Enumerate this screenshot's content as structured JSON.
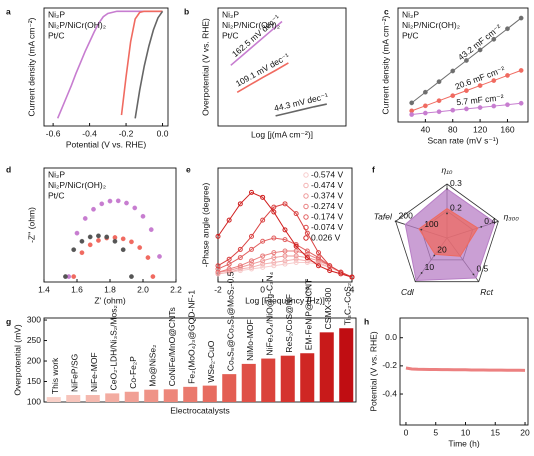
{
  "chart_data": [
    {
      "panel": "a",
      "type": "line",
      "xlabel": "Potential (V vs. RHE)",
      "ylabel": "Current density (mA cm⁻²)",
      "x": [
        -0.6,
        -0.575,
        -0.55,
        -0.525,
        -0.5,
        -0.475,
        -0.45,
        -0.425,
        -0.4,
        -0.375,
        -0.35,
        -0.325,
        -0.3,
        -0.275,
        -0.25,
        -0.225,
        -0.2,
        -0.175,
        -0.15,
        -0.125,
        -0.1,
        -0.075,
        -0.05,
        -0.025,
        0
      ],
      "xlim": [
        -0.65,
        0.03
      ],
      "ylim": [
        -105,
        3
      ],
      "xticks": [
        -0.6,
        -0.4,
        -0.2,
        {
          "value": 0,
          "label": "0.0"
        }
      ],
      "legend": "top-left",
      "series": [
        {
          "name": "Ni₂P",
          "color": "#c77dd0",
          "values": [
            null,
            -98,
            -88,
            -78,
            -68,
            -57,
            -47,
            -37,
            -28,
            -19,
            -11,
            -5,
            -2,
            -1,
            0,
            0,
            0,
            0,
            0,
            0,
            0,
            0,
            0,
            0,
            0
          ]
        },
        {
          "name": "Ni₂P/NiCr(OH)₂",
          "color": "#f06a60",
          "values": [
            null,
            null,
            null,
            null,
            null,
            null,
            null,
            null,
            null,
            null,
            null,
            null,
            null,
            null,
            null,
            -95,
            -60,
            -28,
            -7,
            -1,
            0,
            0,
            0,
            0,
            0
          ]
        },
        {
          "name": "Pt/C",
          "color": "#666666",
          "values": [
            null,
            null,
            null,
            null,
            null,
            null,
            null,
            null,
            null,
            null,
            null,
            null,
            null,
            null,
            null,
            null,
            null,
            null,
            -98,
            -72,
            -50,
            -32,
            -17,
            -6,
            0
          ]
        }
      ]
    },
    {
      "panel": "b",
      "type": "line",
      "xlabel": "Log [j(mA cm⁻²)]",
      "ylabel": "Overpotential (V vs. RHE)",
      "xlim": [
        0,
        2
      ],
      "ylim": [
        0.05,
        0.4
      ],
      "legend": "top-left",
      "annotations": [
        "162.5 mV dec⁻¹",
        "109.1 mV dec⁻¹",
        "44.3 mV dec⁻¹"
      ],
      "series": [
        {
          "name": "Ni₂P",
          "color": "#c77dd0",
          "x": [
            0.2,
            0.4,
            0.6,
            0.8,
            1.0
          ],
          "values": [
            0.23,
            0.2625,
            0.295,
            0.3275,
            0.36
          ]
        },
        {
          "name": "Ni₂P/NiCr(OH)₂",
          "color": "#f06a60",
          "x": [
            0.3,
            0.5,
            0.7,
            0.9,
            1.1
          ],
          "values": [
            0.15,
            0.172,
            0.194,
            0.215,
            0.237
          ]
        },
        {
          "name": "Pt/C",
          "color": "#666666",
          "x": [
            0.9,
            1.1,
            1.3,
            1.5,
            1.7
          ],
          "values": [
            0.08,
            0.089,
            0.098,
            0.107,
            0.115
          ]
        }
      ]
    },
    {
      "panel": "c",
      "type": "scatter",
      "fit": true,
      "xlabel": "Scan rate (mV s⁻¹)",
      "ylabel": "Current density (mA cm⁻²)",
      "x": [
        20,
        40,
        60,
        80,
        100,
        120,
        140,
        160,
        180
      ],
      "xlim": [
        0,
        190
      ],
      "ylim": [
        -0.5,
        8.8
      ],
      "xticks": [
        40,
        80,
        120,
        160
      ],
      "legend": "top-left",
      "annotations": [
        "43.2 mF cm⁻²",
        "20.6 mF cm⁻²",
        "5.7 mF cm⁻²"
      ],
      "series": [
        {
          "name": "Ni₂P",
          "color": "#6e6e6e",
          "values": [
            1.06,
            1.93,
            2.79,
            3.66,
            4.52,
            5.38,
            6.25,
            7.11,
            7.98
          ]
        },
        {
          "name": "Ni₂P/NiCr(OH)₂",
          "color": "#f06a60",
          "values": [
            0.41,
            0.82,
            1.24,
            1.65,
            2.06,
            2.47,
            2.88,
            3.3,
            3.71
          ]
        },
        {
          "name": "Pt/C",
          "color": "#c77dd0",
          "values": [
            0.11,
            0.23,
            0.34,
            0.46,
            0.57,
            0.68,
            0.8,
            0.91,
            1.03
          ]
        }
      ]
    },
    {
      "panel": "d",
      "type": "scatter",
      "xlabel": "Z' (ohm)",
      "ylabel": "-Z'' (ohm)",
      "xlim": [
        1.4,
        2.2
      ],
      "ylim": [
        -0.02,
        0.4
      ],
      "xticks": [
        1.4,
        1.6,
        1.8,
        {
          "value": 2,
          "label": "2.0"
        },
        2.2
      ],
      "legend": "top-left",
      "series": [
        {
          "name": "Ni₂P",
          "color": "#c77dd0",
          "x": [
            1.55,
            1.6,
            1.65,
            1.7,
            1.75,
            1.8,
            1.85,
            1.9,
            1.95,
            2.0,
            2.05,
            2.1
          ],
          "values": [
            0,
            0.16,
            0.214,
            0.248,
            0.268,
            0.278,
            0.279,
            0.271,
            0.253,
            0.222,
            0.173,
            0.074
          ]
        },
        {
          "name": "Ni₂P/NiCr(OH)₂",
          "color": "#f06a60",
          "x": [
            1.58,
            1.63,
            1.68,
            1.73,
            1.78,
            1.83,
            1.88,
            1.93,
            1.98,
            2.03,
            2.06
          ],
          "values": [
            0,
            0.088,
            0.117,
            0.133,
            0.142,
            0.144,
            0.139,
            0.128,
            0.107,
            0.07,
            0
          ]
        },
        {
          "name": "Pt/C",
          "color": "#555555",
          "x": [
            1.53,
            1.58,
            1.63,
            1.68,
            1.73,
            1.78,
            1.83,
            1.88,
            1.93
          ],
          "values": [
            0,
            0.099,
            0.13,
            0.146,
            0.15,
            0.146,
            0.13,
            0.099,
            0
          ]
        }
      ]
    },
    {
      "panel": "e",
      "type": "scatter",
      "marker": "open",
      "connect": true,
      "xlabel": "Log [Frequency (Hz)]",
      "ylabel": "-Phase angle (degree)",
      "x": [
        -2,
        -1.5,
        -1,
        -0.5,
        0,
        0.5,
        1,
        1.5,
        2,
        2.5,
        3,
        3.5,
        4
      ],
      "xlim": [
        -2,
        4
      ],
      "ylim": [
        0,
        70
      ],
      "xticks": [
        -2,
        0,
        2,
        4
      ],
      "legend": "top-right",
      "series": [
        {
          "name": "-0.574 V",
          "color": "#f7cccc",
          "values": [
            5,
            6,
            7,
            8,
            9,
            10,
            11,
            12,
            12,
            11,
            9,
            6,
            3
          ]
        },
        {
          "name": "-0.474 V",
          "color": "#f3b2b2",
          "values": [
            5,
            6,
            8,
            9,
            11,
            12,
            13,
            14,
            13,
            12,
            9,
            6,
            3
          ]
        },
        {
          "name": "-0.374 V",
          "color": "#ee9898",
          "values": [
            6,
            7,
            9,
            11,
            13,
            15,
            16,
            16,
            15,
            13,
            10,
            6,
            3
          ]
        },
        {
          "name": "-0.274 V",
          "color": "#e97d7d",
          "values": [
            6,
            8,
            10,
            13,
            16,
            18,
            19,
            19,
            17,
            14,
            10,
            6,
            3
          ]
        },
        {
          "name": "-0.174 V",
          "color": "#e26060",
          "values": [
            8,
            11,
            15,
            20,
            25,
            27,
            26,
            23,
            19,
            15,
            10,
            6,
            3
          ]
        },
        {
          "name": "-0.074 V",
          "color": "#da4242",
          "values": [
            10,
            14,
            20,
            28,
            38,
            46,
            48,
            42,
            30,
            18,
            10,
            6,
            3
          ]
        },
        {
          "name": "0.026 V",
          "color": "#d02020",
          "values": [
            28,
            38,
            48,
            55,
            52,
            43,
            32,
            22,
            15,
            10,
            7,
            5,
            3
          ]
        }
      ]
    },
    {
      "panel": "f",
      "type": "radar",
      "axes": [
        {
          "label": "η₁₀",
          "lim": [
            0.1,
            0.32
          ],
          "ticks": [
            0.2,
            0.3
          ]
        },
        {
          "label": "η₃₀₀",
          "lim": [
            0.2,
            0.5
          ],
          "ticks": [
            0.4
          ]
        },
        {
          "label": "Rct",
          "lim": [
            0,
            0.6
          ],
          "ticks": [
            0.5
          ]
        },
        {
          "label": "Cdl",
          "lim": [
            30,
            5
          ],
          "ticks": [
            20,
            10
          ]
        },
        {
          "label": "Tafel",
          "lim": [
            0,
            200
          ],
          "ticks": [
            100,
            200
          ]
        }
      ],
      "series": [
        {
          "color": "#b87fc6",
          "values": [
            0.3,
            0.48,
            0.55,
            5.7,
            162.5
          ]
        },
        {
          "color": "#ee6a60",
          "values": [
            0.22,
            0.38,
            0.25,
            20.6,
            109.1
          ]
        }
      ]
    },
    {
      "panel": "g",
      "type": "bar",
      "xlabel": "Electrocatalysts",
      "ylabel": "Overpotential (mV)",
      "categories": [
        "This work",
        "NiFeP/SG",
        "NiFe-MOF",
        "CeO₂-LDH/Ni₃S₂/Mos₂",
        "Co-Fe₂P",
        "Mo@NiSe₂",
        "CoNiFe/MnO@CNTs",
        "Fe₂(MoO₄)₃@GQD-NF-1",
        "WSe₂-CuO",
        "Co₉S₈@Co₃S₄@MoS₂-0.5",
        "NiMo-MOF",
        "NiFe₂O₄/NiO@g-C₃N₄",
        "ReS₂/CoS@NF",
        "EM-FeNiP@HCNT",
        "CSMX-800",
        "Ti₃C₂-CoS₂"
      ],
      "values": [
        112,
        117,
        117,
        121,
        125,
        130,
        131,
        137,
        140,
        168,
        193,
        206,
        213,
        219,
        270,
        280
      ],
      "colors": [
        "#f9d0c8",
        "#f7c4bb",
        "#f5b8ae",
        "#f3aca1",
        "#f19f94",
        "#ef9387",
        "#ed867a",
        "#ea796d",
        "#e76c60",
        "#e35e53",
        "#df5047",
        "#da423b",
        "#d5342f",
        "#cf2724",
        "#c81a1a",
        "#c00d12"
      ],
      "ylim": [
        100,
        305
      ],
      "yticks": [
        100,
        150,
        200,
        250,
        300
      ]
    },
    {
      "panel": "h",
      "type": "line",
      "xlabel": "Time (h)",
      "ylabel": "Potential (V vs. RHE)",
      "x": [
        0,
        1,
        2,
        3,
        4,
        5,
        6,
        7,
        8,
        9,
        10,
        11,
        12,
        13,
        14,
        15,
        16,
        17,
        18,
        19,
        20
      ],
      "xlim": [
        -1,
        20.5
      ],
      "ylim": [
        -0.62,
        0.14
      ],
      "xticks": [
        0,
        5,
        10,
        15,
        20
      ],
      "yticks": [
        {
          "value": 0,
          "label": "0.0"
        },
        -0.2,
        -0.4
      ],
      "series": [
        {
          "color": "#ec8080",
          "values": [
            -0.215,
            -0.222,
            -0.224,
            -0.225,
            -0.226,
            -0.226,
            -0.227,
            -0.227,
            -0.228,
            -0.228,
            -0.228,
            -0.229,
            -0.229,
            -0.229,
            -0.23,
            -0.23,
            -0.23,
            -0.231,
            -0.231,
            -0.231,
            -0.232
          ]
        }
      ]
    }
  ]
}
